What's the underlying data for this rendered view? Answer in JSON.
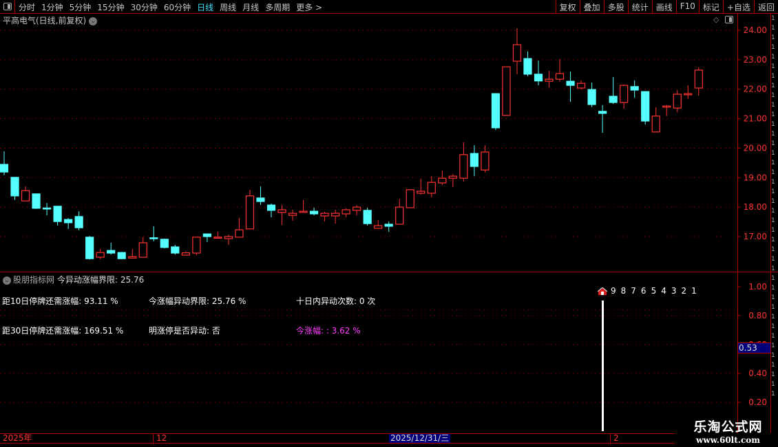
{
  "toolbar": {
    "periods": [
      "分时",
      "1分钟",
      "5分钟",
      "15分钟",
      "30分钟",
      "60分钟",
      "日线",
      "周线",
      "月线",
      "多周期",
      "更多 >"
    ],
    "active_period": "日线",
    "right_buttons": [
      "复权",
      "叠加",
      "多股",
      "统计",
      "画线",
      "F10",
      "标记",
      "+自选",
      "返回"
    ]
  },
  "stock_title": "平高电气(日线,前复权)",
  "colors": {
    "up": "#ff3333",
    "down": "#54ffff",
    "axis": "#b00000",
    "grid": "#8a0000",
    "highlight_bg": "#00007a",
    "magenta": "#ff3cff"
  },
  "chart_data": {
    "type": "candlestick",
    "yticks": [
      "24.00",
      "23.00",
      "22.00",
      "21.00",
      "20.00",
      "19.00",
      "18.00",
      "17.00"
    ],
    "ylim": [
      15.8,
      24.5
    ],
    "grid": true,
    "ohlc": [
      [
        19.45,
        19.89,
        19.08,
        19.19
      ],
      [
        19.01,
        19.03,
        18.24,
        18.38
      ],
      [
        18.21,
        18.7,
        18.21,
        18.56
      ],
      [
        18.45,
        18.45,
        17.94,
        17.96
      ],
      [
        17.97,
        18.14,
        17.72,
        17.95
      ],
      [
        18.03,
        18.03,
        17.37,
        17.51
      ],
      [
        17.58,
        17.63,
        17.26,
        17.47
      ],
      [
        17.68,
        17.86,
        17.21,
        17.3
      ],
      [
        16.98,
        17.02,
        16.22,
        16.25
      ],
      [
        16.3,
        16.58,
        16.23,
        16.46
      ],
      [
        16.53,
        16.79,
        16.39,
        16.44
      ],
      [
        16.46,
        16.48,
        16.23,
        16.25
      ],
      [
        16.27,
        16.58,
        16.25,
        16.32
      ],
      [
        16.3,
        16.98,
        16.3,
        16.79
      ],
      [
        16.96,
        17.35,
        16.84,
        16.93
      ],
      [
        16.91,
        16.93,
        16.6,
        16.63
      ],
      [
        16.65,
        16.72,
        16.39,
        16.44
      ],
      [
        16.37,
        16.51,
        16.37,
        16.45
      ],
      [
        16.44,
        16.98,
        16.37,
        16.98
      ],
      [
        17.09,
        17.09,
        16.81,
        17.0
      ],
      [
        16.95,
        17.16,
        16.93,
        16.98
      ],
      [
        16.93,
        17.07,
        16.72,
        17.0
      ],
      [
        16.98,
        17.63,
        16.98,
        17.23
      ],
      [
        17.26,
        18.59,
        17.26,
        18.38
      ],
      [
        18.31,
        18.7,
        18.07,
        18.19
      ],
      [
        18.07,
        18.12,
        17.65,
        17.89
      ],
      [
        17.82,
        18.07,
        17.4,
        17.91
      ],
      [
        17.72,
        17.91,
        17.54,
        17.79
      ],
      [
        17.82,
        18.24,
        17.82,
        17.86
      ],
      [
        17.86,
        17.98,
        17.72,
        17.77
      ],
      [
        17.7,
        17.84,
        17.51,
        17.79
      ],
      [
        17.7,
        17.91,
        17.44,
        17.79
      ],
      [
        17.77,
        17.96,
        17.65,
        17.91
      ],
      [
        17.89,
        18.07,
        17.72,
        18.0
      ],
      [
        17.89,
        17.98,
        17.37,
        17.44
      ],
      [
        17.28,
        17.56,
        17.26,
        17.37
      ],
      [
        17.42,
        17.51,
        17.16,
        17.35
      ],
      [
        17.42,
        18.28,
        17.42,
        18.0
      ],
      [
        17.98,
        18.61,
        17.98,
        18.59
      ],
      [
        18.47,
        18.96,
        18.42,
        18.54
      ],
      [
        18.47,
        19.05,
        18.33,
        18.84
      ],
      [
        18.82,
        19.24,
        18.75,
        18.98
      ],
      [
        18.98,
        19.12,
        18.68,
        19.05
      ],
      [
        18.98,
        20.2,
        18.86,
        19.78
      ],
      [
        19.82,
        20.1,
        19.05,
        19.38
      ],
      [
        19.26,
        20.1,
        19.17,
        19.87
      ],
      [
        21.85,
        21.85,
        20.62,
        20.69
      ],
      [
        21.11,
        22.76,
        21.11,
        22.76
      ],
      [
        22.95,
        24.07,
        22.51,
        23.51
      ],
      [
        23.04,
        23.28,
        22.44,
        22.51
      ],
      [
        22.51,
        22.97,
        22.13,
        22.28
      ],
      [
        22.27,
        22.62,
        22.06,
        22.34
      ],
      [
        22.34,
        23.02,
        22.25,
        22.53
      ],
      [
        22.27,
        22.6,
        21.57,
        22.13
      ],
      [
        22.04,
        22.3,
        21.99,
        22.2
      ],
      [
        21.99,
        22.23,
        21.39,
        21.48
      ],
      [
        21.25,
        21.46,
        20.52,
        21.18
      ],
      [
        21.76,
        22.41,
        21.5,
        21.55
      ],
      [
        21.55,
        22.16,
        21.34,
        22.13
      ],
      [
        22.09,
        22.3,
        21.71,
        21.97
      ],
      [
        21.92,
        21.92,
        20.8,
        20.92
      ],
      [
        20.55,
        21.39,
        20.55,
        21.09
      ],
      [
        21.39,
        21.46,
        21.09,
        21.43
      ],
      [
        21.36,
        21.97,
        21.22,
        21.83
      ],
      [
        21.81,
        22.13,
        21.67,
        21.85
      ],
      [
        22.04,
        22.74,
        21.78,
        22.65
      ]
    ]
  },
  "indicator": {
    "name": "股朋指标网",
    "header_label": "今异动涨幅界限: 25.76",
    "rows": [
      [
        "距10日停牌还需涨幅: 93.11 %",
        "今涨幅异动界限: 25.76 %",
        "十日内异动次数: 0 次"
      ],
      [
        "距30日停牌还需涨幅: 169.51 %",
        "明涨停是否异动: 否",
        "今涨幅: : 3.62 %"
      ]
    ],
    "countdown": [
      "9",
      "8",
      "7",
      "6",
      "5",
      "4",
      "3",
      "2",
      "1"
    ],
    "yticks": [
      "1.00",
      "0.80",
      "0.60",
      "0.40",
      "0.20"
    ],
    "ylim": [
      0.1,
      1.1
    ],
    "current_value": "0.53",
    "bar_value": 0.9
  },
  "time_axis": {
    "labels": [
      "2025年",
      "12",
      "2"
    ],
    "cursor_date": "2025/12/31/三"
  },
  "watermark": {
    "name": "乐淘公式网",
    "url": "www.60lt.com"
  }
}
